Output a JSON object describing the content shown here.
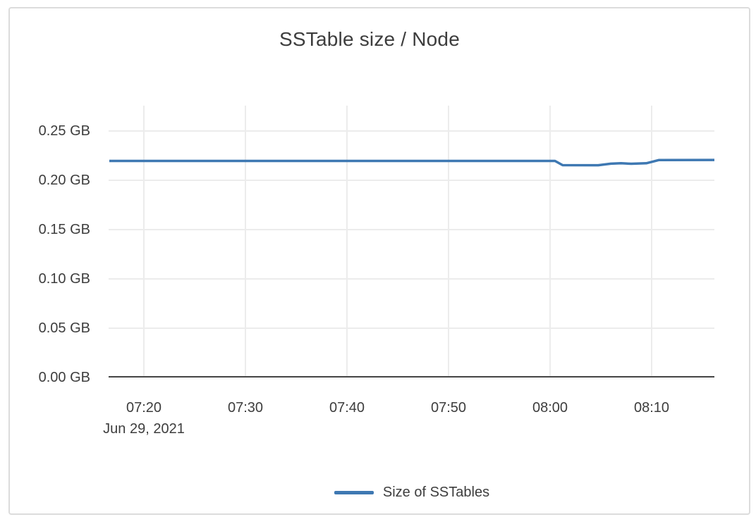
{
  "chart_data": {
    "type": "line",
    "title": "SSTable size / Node",
    "xlabel": "",
    "ylabel": "",
    "unit": "GB",
    "date_label": "Jun 29, 2021",
    "yticks": [
      "0.25 GB",
      "0.20 GB",
      "0.15 GB",
      "0.10 GB",
      "0.05 GB",
      "0.00 GB"
    ],
    "xticks": [
      "07:20",
      "07:30",
      "07:40",
      "07:50",
      "08:00",
      "08:10"
    ],
    "ylim": [
      0,
      0.2758
    ],
    "xlim": [
      "07:16:36",
      "08:16:12"
    ],
    "grid": true,
    "legend_position": "bottom-center",
    "colors": {
      "series_line": "#3e78b2",
      "axis_line": "#444444",
      "gridline": "#ececec",
      "text": "#3d3d3d",
      "card_border": "#dcdcdc",
      "background": "#ffffff"
    },
    "series": [
      {
        "name": "Size of SSTables",
        "color": "#3e78b2",
        "points": [
          [
            "07:16:00",
            0.2196
          ],
          [
            "07:30:00",
            0.2196
          ],
          [
            "07:45:00",
            0.2196
          ],
          [
            "08:00:30",
            0.2196
          ],
          [
            "08:01:15",
            0.2153
          ],
          [
            "08:04:45",
            0.2152
          ],
          [
            "08:06:00",
            0.2168
          ],
          [
            "08:07:00",
            0.2172
          ],
          [
            "08:08:00",
            0.2167
          ],
          [
            "08:09:30",
            0.2172
          ],
          [
            "08:10:45",
            0.2205
          ],
          [
            "08:16:30",
            0.2206
          ]
        ]
      }
    ]
  }
}
